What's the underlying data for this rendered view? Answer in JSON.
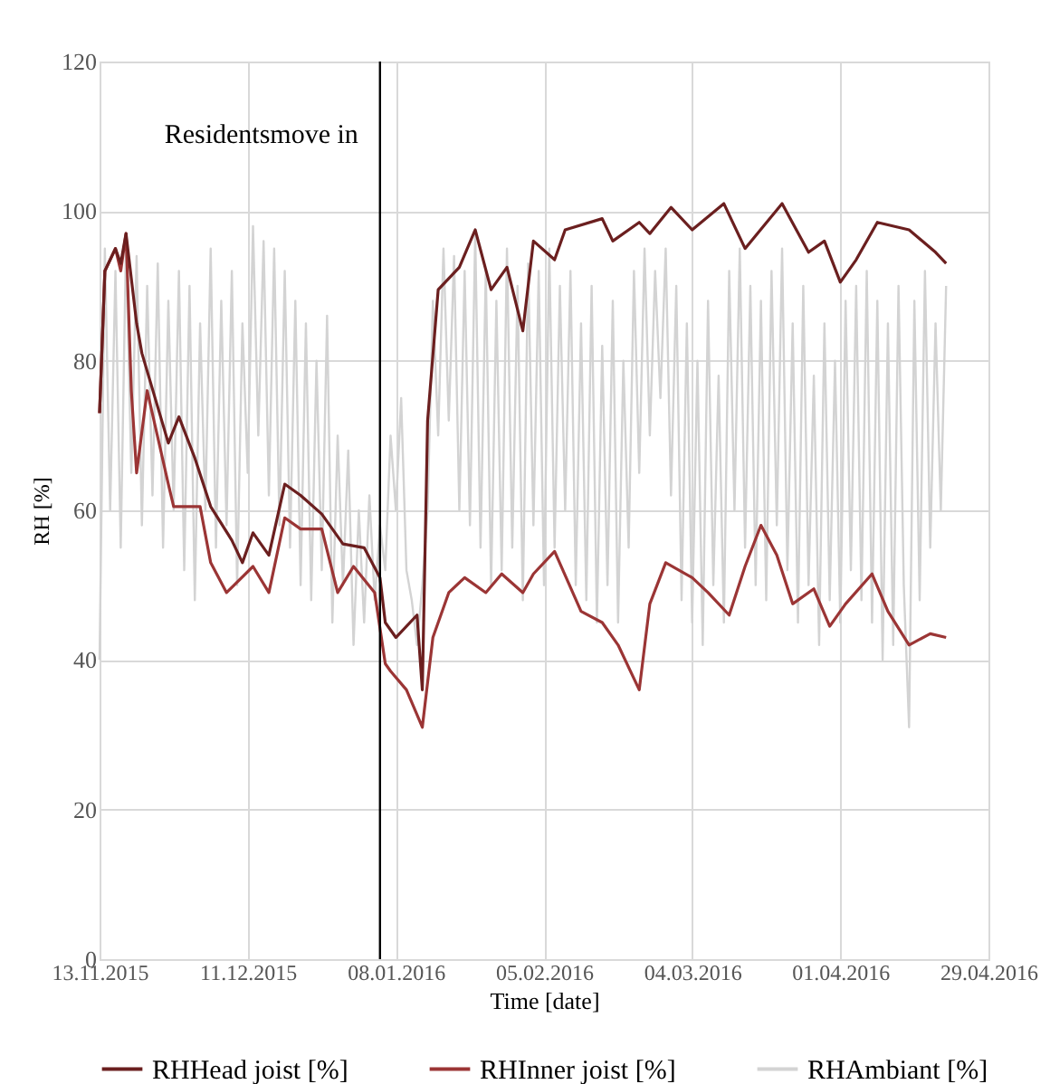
{
  "chart_data": {
    "type": "line",
    "xlabel": "Time [date]",
    "ylabel": "RH [%]",
    "xlim": [
      "2015-11-13",
      "2016-04-29"
    ],
    "xticks": [
      {
        "value": "2015-11-13",
        "label": "13.11.2015"
      },
      {
        "value": "2015-12-11",
        "label": "11.12.2015"
      },
      {
        "value": "2016-01-08",
        "label": "08.01.2016"
      },
      {
        "value": "2016-02-05",
        "label": "05.02.2016"
      },
      {
        "value": "2016-03-04",
        "label": "04.03.2016"
      },
      {
        "value": "2016-04-01",
        "label": "01.04.2016"
      },
      {
        "value": "2016-04-29",
        "label": "29.04.2016"
      }
    ],
    "ylim": [
      0,
      120
    ],
    "yticks": [
      0,
      20,
      40,
      60,
      80,
      100,
      120
    ],
    "grid": true,
    "legend": "bottom",
    "ref_lines": [
      {
        "axis": "x",
        "value": "2016-01-05",
        "label": "Residentsmove in",
        "color": "#000000"
      }
    ],
    "series": [
      {
        "name": "RHHead joist [%]",
        "color": "#6b1f1f",
        "x": [
          "2015-11-13",
          "2015-11-14",
          "2015-11-16",
          "2015-11-17",
          "2015-11-18",
          "2015-11-20",
          "2015-11-21",
          "2015-11-26",
          "2015-11-28",
          "2015-12-01",
          "2015-12-04",
          "2015-12-08",
          "2015-12-10",
          "2015-12-12",
          "2015-12-15",
          "2015-12-18",
          "2015-12-21",
          "2015-12-25",
          "2015-12-29",
          "2016-01-02",
          "2016-01-05",
          "2016-01-06",
          "2016-01-08",
          "2016-01-12",
          "2016-01-13",
          "2016-01-14",
          "2016-01-16",
          "2016-01-20",
          "2016-01-23",
          "2016-01-26",
          "2016-01-29",
          "2016-02-01",
          "2016-02-03",
          "2016-02-07",
          "2016-02-09",
          "2016-02-16",
          "2016-02-18",
          "2016-02-23",
          "2016-02-25",
          "2016-02-29",
          "2016-03-04",
          "2016-03-10",
          "2016-03-14",
          "2016-03-21",
          "2016-03-26",
          "2016-03-29",
          "2016-04-01",
          "2016-04-04",
          "2016-04-08",
          "2016-04-14",
          "2016-04-19",
          "2016-04-21"
        ],
        "values": [
          73,
          92,
          95,
          93,
          97,
          85,
          81,
          69,
          72.5,
          67,
          60.5,
          56,
          53,
          57,
          54,
          63.5,
          62,
          59.5,
          55.5,
          55,
          51,
          45,
          43,
          46,
          36,
          72,
          89.5,
          92.5,
          97.5,
          89.5,
          92.5,
          84,
          96,
          93.5,
          97.5,
          99,
          96,
          98.5,
          97,
          100.5,
          97.5,
          101,
          95,
          101,
          94.5,
          96,
          90.5,
          93.5,
          98.5,
          97.5,
          94.5,
          93
        ]
      },
      {
        "name": "RHInner joist [%]",
        "color": "#9b3535",
        "x": [
          "2015-11-13",
          "2015-11-14",
          "2015-11-16",
          "2015-11-17",
          "2015-11-18",
          "2015-11-19",
          "2015-11-20",
          "2015-11-22",
          "2015-11-26",
          "2015-11-27",
          "2015-12-02",
          "2015-12-04",
          "2015-12-07",
          "2015-12-12",
          "2015-12-15",
          "2015-12-18",
          "2015-12-21",
          "2015-12-25",
          "2015-12-28",
          "2015-12-31",
          "2016-01-04",
          "2016-01-06",
          "2016-01-07",
          "2016-01-10",
          "2016-01-13",
          "2016-01-15",
          "2016-01-18",
          "2016-01-21",
          "2016-01-25",
          "2016-01-28",
          "2016-02-01",
          "2016-02-03",
          "2016-02-07",
          "2016-02-12",
          "2016-02-16",
          "2016-02-19",
          "2016-02-23",
          "2016-02-25",
          "2016-02-28",
          "2016-03-04",
          "2016-03-07",
          "2016-03-11",
          "2016-03-14",
          "2016-03-17",
          "2016-03-20",
          "2016-03-23",
          "2016-03-27",
          "2016-03-30",
          "2016-04-02",
          "2016-04-07",
          "2016-04-10",
          "2016-04-14",
          "2016-04-18",
          "2016-04-21"
        ],
        "values": [
          73,
          92,
          95,
          92,
          97,
          76,
          65,
          76,
          63.5,
          60.5,
          60.5,
          53,
          49,
          52.5,
          49,
          59,
          57.5,
          57.5,
          49,
          52.5,
          49,
          39.5,
          38.5,
          36,
          31,
          43,
          49,
          51,
          49,
          51.5,
          49,
          51.5,
          54.5,
          46.5,
          45,
          42,
          36,
          47.5,
          53,
          51,
          49,
          46,
          52.5,
          58,
          54,
          47.5,
          49.5,
          44.5,
          47.5,
          51.5,
          46.5,
          42,
          43.5,
          43
        ]
      },
      {
        "name": "RHAmbiant [%]",
        "color": "#d3d3d3",
        "x": [
          "2015-11-13",
          "2015-11-14",
          "2015-11-15",
          "2015-11-16",
          "2015-11-17",
          "2015-11-18",
          "2015-11-19",
          "2015-11-20",
          "2015-11-21",
          "2015-11-22",
          "2015-11-23",
          "2015-11-24",
          "2015-11-25",
          "2015-11-26",
          "2015-11-27",
          "2015-11-28",
          "2015-11-29",
          "2015-11-30",
          "2015-12-01",
          "2015-12-02",
          "2015-12-03",
          "2015-12-04",
          "2015-12-05",
          "2015-12-06",
          "2015-12-07",
          "2015-12-08",
          "2015-12-09",
          "2015-12-10",
          "2015-12-11",
          "2015-12-12",
          "2015-12-13",
          "2015-12-14",
          "2015-12-15",
          "2015-12-16",
          "2015-12-17",
          "2015-12-18",
          "2015-12-19",
          "2015-12-20",
          "2015-12-21",
          "2015-12-22",
          "2015-12-23",
          "2015-12-24",
          "2015-12-25",
          "2015-12-26",
          "2015-12-27",
          "2015-12-28",
          "2015-12-29",
          "2015-12-30",
          "2015-12-31",
          "2016-01-01",
          "2016-01-02",
          "2016-01-03",
          "2016-01-04",
          "2016-01-05",
          "2016-01-06",
          "2016-01-07",
          "2016-01-08",
          "2016-01-09",
          "2016-01-10",
          "2016-01-11",
          "2016-01-12",
          "2016-01-13",
          "2016-01-14",
          "2016-01-15",
          "2016-01-16",
          "2016-01-17",
          "2016-01-18",
          "2016-01-19",
          "2016-01-20",
          "2016-01-21",
          "2016-01-22",
          "2016-01-23",
          "2016-01-24",
          "2016-01-25",
          "2016-01-26",
          "2016-01-27",
          "2016-01-28",
          "2016-01-29",
          "2016-01-30",
          "2016-01-31",
          "2016-02-01",
          "2016-02-02",
          "2016-02-03",
          "2016-02-04",
          "2016-02-05",
          "2016-02-06",
          "2016-02-07",
          "2016-02-08",
          "2016-02-09",
          "2016-02-10",
          "2016-02-11",
          "2016-02-12",
          "2016-02-13",
          "2016-02-14",
          "2016-02-15",
          "2016-02-16",
          "2016-02-17",
          "2016-02-18",
          "2016-02-19",
          "2016-02-20",
          "2016-02-21",
          "2016-02-22",
          "2016-02-23",
          "2016-02-24",
          "2016-02-25",
          "2016-02-26",
          "2016-02-27",
          "2016-02-28",
          "2016-02-29",
          "2016-03-01",
          "2016-03-02",
          "2016-03-03",
          "2016-03-04",
          "2016-03-05",
          "2016-03-06",
          "2016-03-07",
          "2016-03-08",
          "2016-03-09",
          "2016-03-10",
          "2016-03-11",
          "2016-03-12",
          "2016-03-13",
          "2016-03-14",
          "2016-03-15",
          "2016-03-16",
          "2016-03-17",
          "2016-03-18",
          "2016-03-19",
          "2016-03-20",
          "2016-03-21",
          "2016-03-22",
          "2016-03-23",
          "2016-03-24",
          "2016-03-25",
          "2016-03-26",
          "2016-03-27",
          "2016-03-28",
          "2016-03-29",
          "2016-03-30",
          "2016-03-31",
          "2016-04-01",
          "2016-04-02",
          "2016-04-03",
          "2016-04-04",
          "2016-04-05",
          "2016-04-06",
          "2016-04-07",
          "2016-04-08",
          "2016-04-09",
          "2016-04-10",
          "2016-04-11",
          "2016-04-12",
          "2016-04-13",
          "2016-04-14",
          "2016-04-15",
          "2016-04-16",
          "2016-04-17",
          "2016-04-18",
          "2016-04-19",
          "2016-04-20",
          "2016-04-21"
        ],
        "values": [
          40,
          95,
          60,
          92,
          55,
          96,
          65,
          94,
          58,
          90,
          62,
          93,
          55,
          88,
          60,
          92,
          52,
          90,
          48,
          85,
          60,
          95,
          55,
          88,
          58,
          92,
          50,
          85,
          65,
          98,
          70,
          96,
          62,
          95,
          58,
          92,
          55,
          88,
          50,
          85,
          48,
          80,
          52,
          86,
          45,
          70,
          50,
          68,
          42,
          60,
          45,
          62,
          48,
          58,
          52,
          70,
          60,
          75,
          52,
          48,
          42,
          50,
          60,
          88,
          70,
          95,
          72,
          94,
          60,
          92,
          58,
          97,
          55,
          92,
          50,
          88,
          52,
          95,
          55,
          90,
          48,
          93,
          58,
          92,
          50,
          95,
          55,
          90,
          60,
          92,
          50,
          85,
          48,
          90,
          45,
          82,
          50,
          88,
          45,
          80,
          55,
          92,
          65,
          95,
          70,
          92,
          75,
          95,
          62,
          90,
          48,
          85,
          45,
          80,
          42,
          88,
          50,
          78,
          45,
          92,
          60,
          95,
          55,
          90,
          50,
          88,
          48,
          92,
          58,
          95,
          52,
          85,
          45,
          90,
          50,
          78,
          42,
          85,
          48,
          80,
          45,
          88,
          52,
          90,
          48,
          92,
          45,
          88,
          40,
          85,
          42,
          90,
          50,
          31,
          88,
          48,
          92,
          55,
          85,
          60,
          90
        ]
      }
    ]
  }
}
